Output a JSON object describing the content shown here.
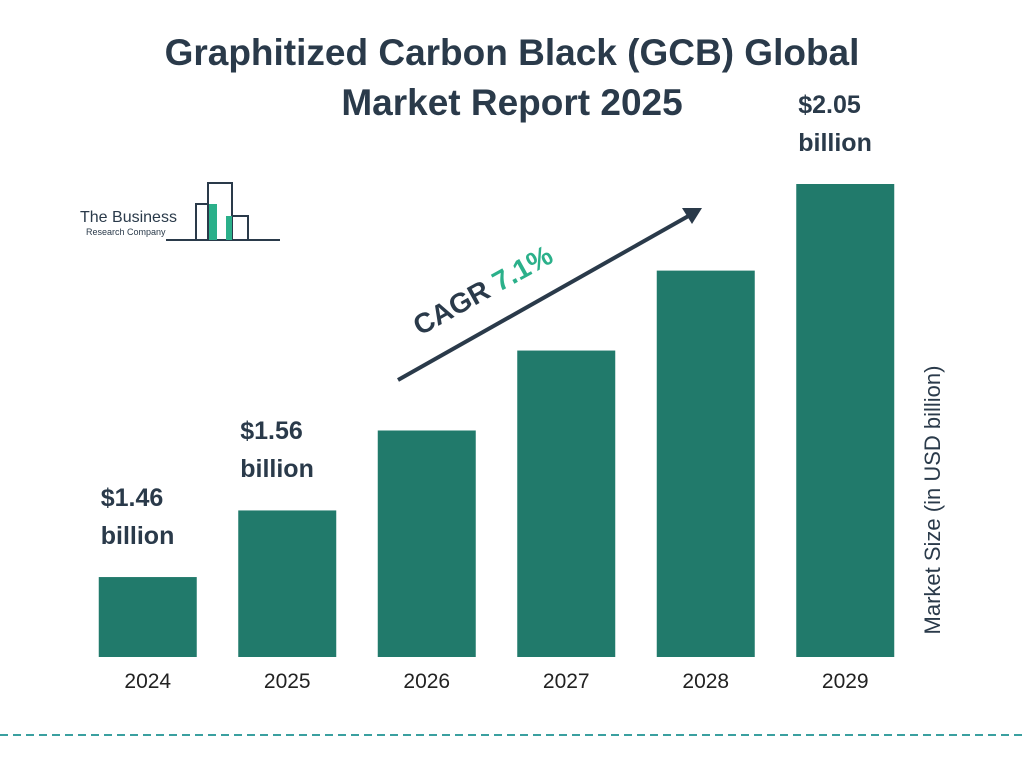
{
  "chart_data": {
    "type": "bar",
    "title": "Graphitized Carbon Black (GCB) Global Market Report 2025",
    "categories": [
      "2024",
      "2025",
      "2026",
      "2027",
      "2028",
      "2029"
    ],
    "values": [
      1.46,
      1.56,
      1.68,
      1.8,
      1.92,
      2.05
    ],
    "value_labels": [
      "$1.46 billion",
      "$1.56 billion",
      null,
      null,
      null,
      "$2.05 billion"
    ],
    "color": "#217a6b",
    "ylim": [
      1.34,
      2.05
    ],
    "y_axis_label": "Market Size (in USD billion)",
    "cagr_label": "CAGR",
    "cagr_value": "7.1%"
  },
  "logo": {
    "line1": "The Business",
    "line2": "Research Company"
  }
}
